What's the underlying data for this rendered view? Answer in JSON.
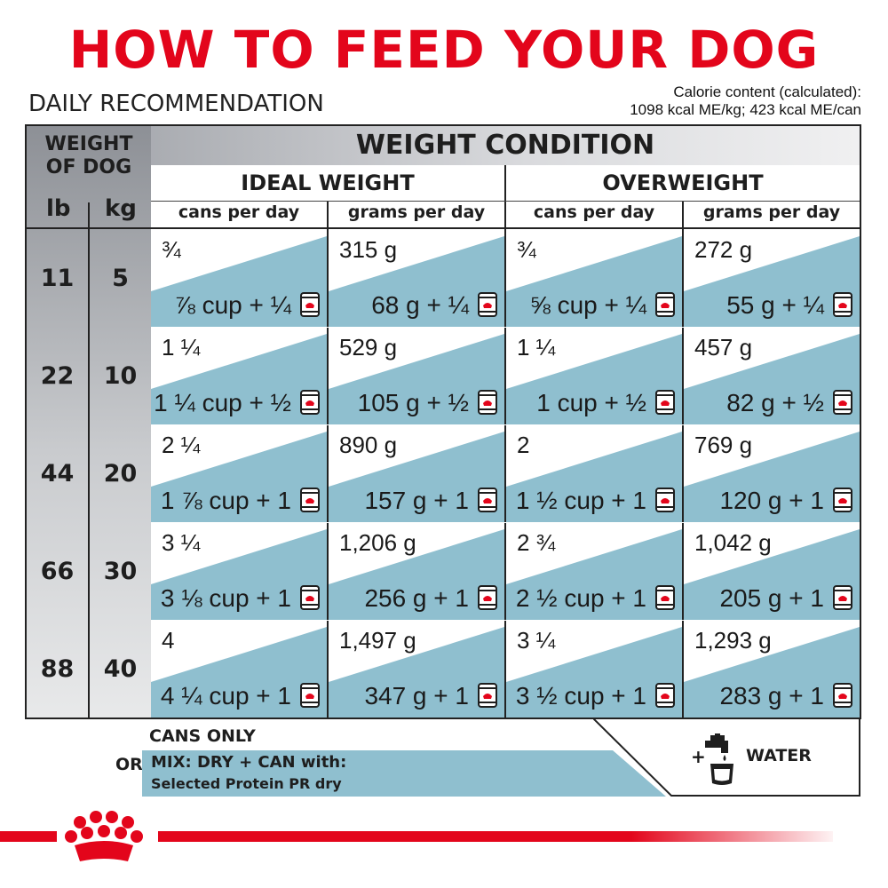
{
  "title": "HOW TO FEED YOUR DOG",
  "subtitle": "DAILY RECOMMENDATION",
  "calorie": {
    "line1": "Calorie content (calculated):",
    "line2": "1098 kcal ME/kg; 423 kcal ME/can"
  },
  "table": {
    "weight_of_dog": "WEIGHT OF DOG",
    "unit_lb": "lb",
    "unit_kg": "kg",
    "condition": "WEIGHT CONDITION",
    "groups": [
      "IDEAL WEIGHT",
      "OVERWEIGHT"
    ],
    "columns": [
      "cans per day",
      "grams per day",
      "cans per day",
      "grams per day"
    ],
    "rows": [
      {
        "lb": "11",
        "kg": "5",
        "cells": [
          {
            "top": "¾",
            "bottom": "⅞ cup + ¼"
          },
          {
            "top": "315 g",
            "bottom": "68 g + ¼"
          },
          {
            "top": "¾",
            "bottom": "⅝ cup + ¼"
          },
          {
            "top": "272 g",
            "bottom": "55 g + ¼"
          }
        ]
      },
      {
        "lb": "22",
        "kg": "10",
        "cells": [
          {
            "top": "1 ¼",
            "bottom": "1 ¼ cup + ½"
          },
          {
            "top": "529 g",
            "bottom": "105 g + ½"
          },
          {
            "top": "1 ¼",
            "bottom": "1 cup + ½"
          },
          {
            "top": "457 g",
            "bottom": "82 g + ½"
          }
        ]
      },
      {
        "lb": "44",
        "kg": "20",
        "cells": [
          {
            "top": "2 ¼",
            "bottom": "1 ⅞ cup + 1"
          },
          {
            "top": "890 g",
            "bottom": "157 g + 1"
          },
          {
            "top": "2",
            "bottom": "1 ½ cup + 1"
          },
          {
            "top": "769 g",
            "bottom": "120 g + 1"
          }
        ]
      },
      {
        "lb": "66",
        "kg": "30",
        "cells": [
          {
            "top": "3 ¼",
            "bottom": "3 ⅛ cup + 1"
          },
          {
            "top": "1,206 g",
            "bottom": "256 g + 1"
          },
          {
            "top": "2 ¾",
            "bottom": "2 ½ cup + 1"
          },
          {
            "top": "1,042 g",
            "bottom": "205 g + 1"
          }
        ]
      },
      {
        "lb": "88",
        "kg": "40",
        "cells": [
          {
            "top": "4",
            "bottom": "4 ¼ cup + 1"
          },
          {
            "top": "1,497 g",
            "bottom": "347 g + 1"
          },
          {
            "top": "3 ¼",
            "bottom": "3 ½ cup + 1"
          },
          {
            "top": "1,293 g",
            "bottom": "283 g + 1"
          }
        ]
      }
    ]
  },
  "legend": {
    "cans_only": "CANS ONLY",
    "or": "OR",
    "mix": "MIX: DRY + CAN with:",
    "mix_sub": "Selected Protein PR dry",
    "water": "WATER",
    "plus": "+"
  },
  "colors": {
    "brand_red": "#e3051b",
    "cell_blue": "#8fbfcf",
    "header_gray": "#9a9da3"
  },
  "icons": [
    "can-icon",
    "water-tap-icon",
    "royal-canin-crown-logo"
  ]
}
